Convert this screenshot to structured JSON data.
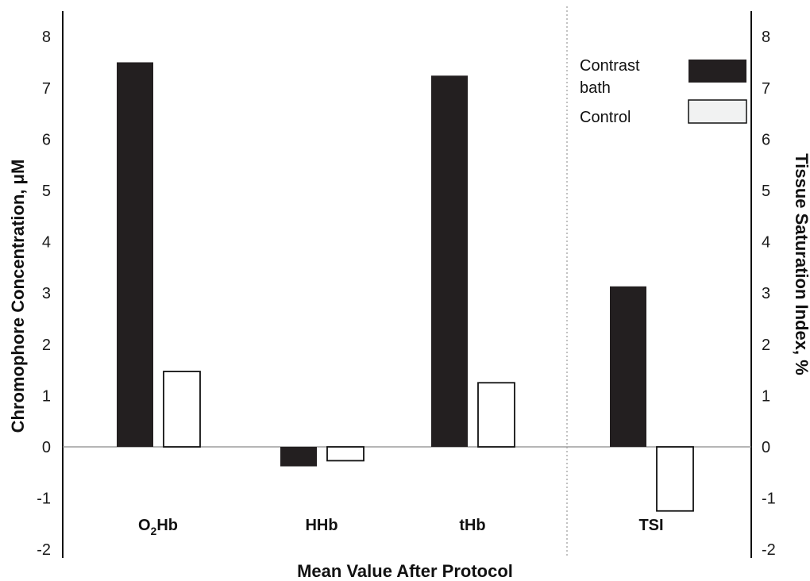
{
  "chart_data": {
    "type": "bar",
    "categories": [
      "O2Hb",
      "HHb",
      "tHb",
      "TSI"
    ],
    "category_labels": [
      {
        "main": "O",
        "sub": "2",
        "rest": "Hb"
      },
      {
        "main": "HHb",
        "sub": "",
        "rest": ""
      },
      {
        "main": "tHb",
        "sub": "",
        "rest": ""
      },
      {
        "main": "TSI",
        "sub": "",
        "rest": ""
      }
    ],
    "series": [
      {
        "name": "Contrast bath",
        "values": [
          7.5,
          -0.38,
          7.24,
          3.13
        ],
        "color": "#231f20"
      },
      {
        "name": "Control",
        "values": [
          1.47,
          -0.27,
          1.25,
          -1.25
        ],
        "color": "#ffffff"
      }
    ],
    "legend": {
      "placement": "top-right",
      "items": [
        {
          "label_lines": [
            "Contrast",
            "bath"
          ],
          "fill": "#231f20"
        },
        {
          "label_lines": [
            "Control"
          ],
          "fill": "#f1f2f2"
        }
      ]
    },
    "xlabel": "Mean Value After Protocol",
    "ylabel": "Chromophore Concentration, μM",
    "y2label": "Tissue Saturation Index, %",
    "ylim": [
      -2,
      8
    ],
    "y_ticks": [
      8,
      7,
      6,
      5,
      4,
      3,
      2,
      1,
      0,
      -1,
      -2
    ],
    "y_tick_labels": [
      "8",
      "7",
      "6",
      "5",
      "4",
      "3",
      "2",
      "1",
      "0",
      "-1",
      "-2"
    ],
    "y2_ticks": [
      8,
      7,
      6,
      5,
      4,
      3,
      2,
      1,
      0,
      -1,
      -2
    ],
    "y2_tick_labels": [
      "8",
      "7",
      "6",
      "5",
      "4",
      "3",
      "2",
      "1",
      "0",
      "-1",
      "-2"
    ],
    "separator_before_category": "TSI",
    "grid": false
  }
}
